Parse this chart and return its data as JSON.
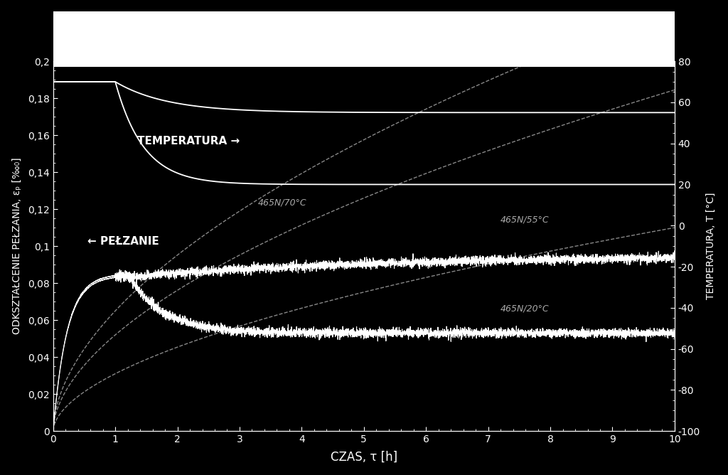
{
  "background_color": "#000000",
  "plot_bg_color": "#000000",
  "text_color": "#ffffff",
  "xlabel": "CZAS, τ [h]",
  "ylabel": "ODKSZTAŁCENIE PEŁZANIA, εₚ [‰₀]",
  "ylabel2": "TEMPERATURA, T [°C]",
  "xlim": [
    0,
    10
  ],
  "ylim": [
    0,
    0.2
  ],
  "ylim2": [
    -100,
    80
  ],
  "xticks": [
    0,
    1,
    2,
    3,
    4,
    5,
    6,
    7,
    8,
    9,
    10
  ],
  "yticks_left": [
    0,
    0.02,
    0.04,
    0.06,
    0.08,
    0.1,
    0.12,
    0.14,
    0.16,
    0.18,
    0.2
  ],
  "yticks_right": [
    -100,
    -80,
    -60,
    -40,
    -20,
    0,
    20,
    40,
    60,
    80
  ],
  "ytick_labels_left": [
    "0",
    "0,02",
    "0,04",
    "0,06",
    "0,08",
    "0,1",
    "0,12",
    "0,14",
    "0,16",
    "0,18",
    "0,2"
  ],
  "label_465_70": "465N/70°C",
  "label_465_55": "465N/55°C",
  "label_465_20": "465N/20°C",
  "annotation_temp": "TEMPERATURA →",
  "annotation_creep": "← PEŁZANIE",
  "figsize": [
    10.24,
    6.68
  ],
  "dpi": 100
}
